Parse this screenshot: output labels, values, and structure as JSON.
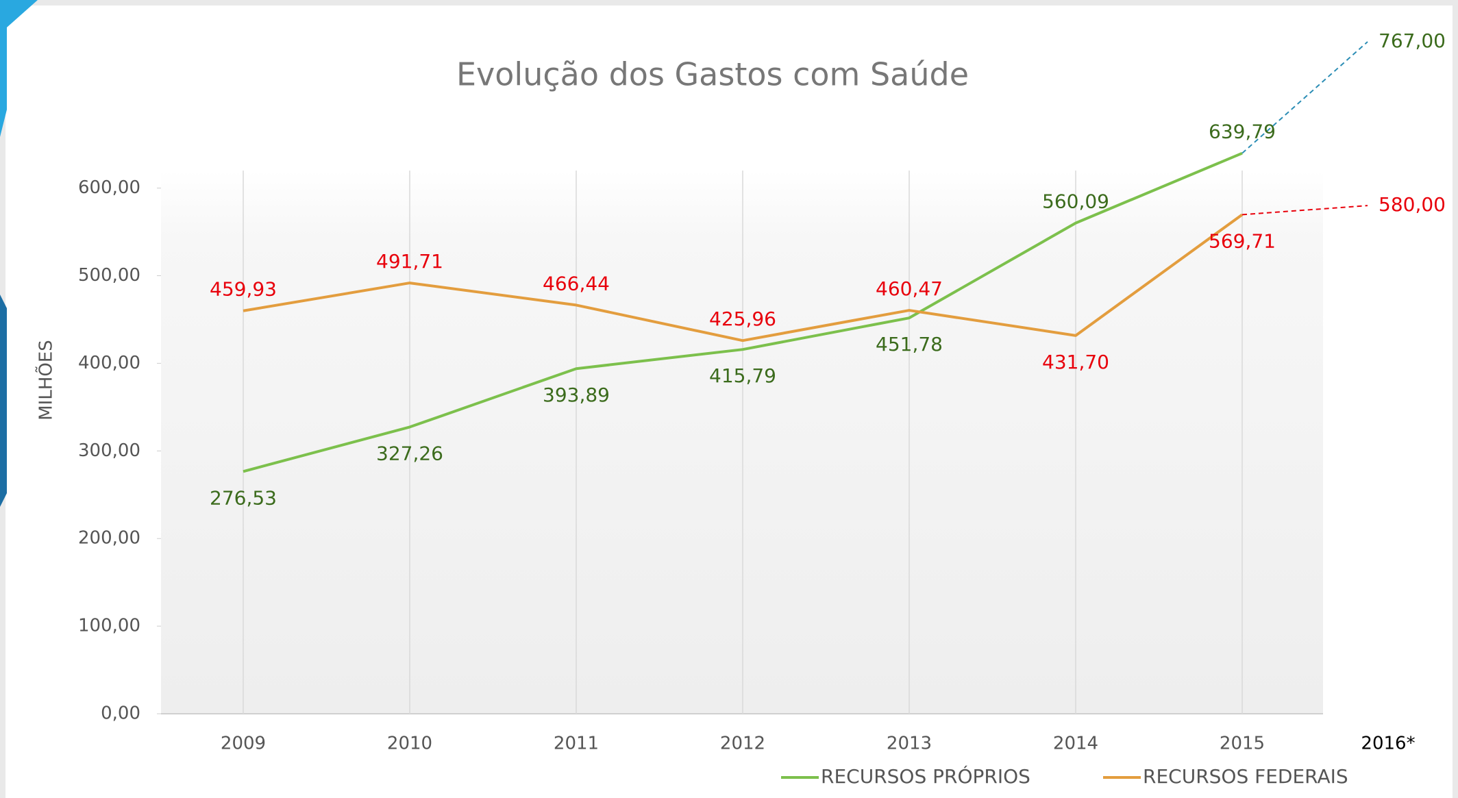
{
  "chart_data": {
    "type": "line",
    "title": "Evolução dos Gastos com Saúde",
    "y_label": "MILHÕES",
    "categories": [
      "2009",
      "2010",
      "2011",
      "2012",
      "2013",
      "2014",
      "2015",
      "2016*"
    ],
    "projected_from": 6,
    "series": [
      {
        "name": "RECURSOS PRÓPRIOS",
        "color": "#7cc04c",
        "label_color": "#3b6b1c",
        "projection_color": "#2b8db5",
        "values": [
          276.53,
          327.26,
          393.89,
          415.79,
          451.78,
          560.09,
          639.79,
          767.0
        ],
        "value_labels": [
          "276,53",
          "327,26",
          "393,89",
          "415,79",
          "451,78",
          "560,09",
          "639,79",
          "767,00"
        ]
      },
      {
        "name": "RECURSOS FEDERAIS",
        "color": "#e39d3e",
        "label_color": "#e8000b",
        "projection_color": "#e8000b",
        "values": [
          459.93,
          491.71,
          466.44,
          425.96,
          460.47,
          431.7,
          569.71,
          580.0
        ],
        "value_labels": [
          "459,93",
          "491,71",
          "466,44",
          "425,96",
          "460,47",
          "431,70",
          "569,71",
          "580,00"
        ]
      }
    ],
    "ylim": [
      0,
      620
    ],
    "yticks": [
      {
        "value": 0,
        "label": "0,00"
      },
      {
        "value": 100,
        "label": "100,00"
      },
      {
        "value": 200,
        "label": "200,00"
      },
      {
        "value": 300,
        "label": "300,00"
      },
      {
        "value": 400,
        "label": "400,00"
      },
      {
        "value": 500,
        "label": "500,00"
      },
      {
        "value": 600,
        "label": "600,00"
      }
    ],
    "x_grid": true,
    "legend": "bottom"
  }
}
